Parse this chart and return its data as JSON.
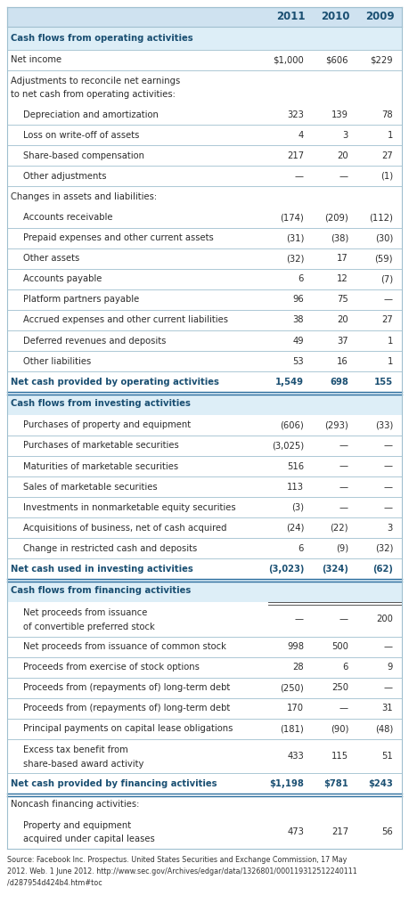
{
  "header_years": [
    "2011",
    "2010",
    "2009"
  ],
  "header_bg": "#cfe2f0",
  "section_bg": "#ddeef7",
  "normal_bg": "#ffffff",
  "alt_bg": "#f0f7fc",
  "border_color": "#9fbfcf",
  "section_text_color": "#1a4f72",
  "text_color": "#2c2c2c",
  "rows": [
    {
      "type": "section",
      "label": "Cash flows from operating activities",
      "v2011": "",
      "v2010": "",
      "v2009": "",
      "multiline": false
    },
    {
      "type": "data",
      "label": "Net income",
      "v2011": "$1,000",
      "v2010": "$606",
      "v2009": "$229",
      "multiline": false,
      "bold": false,
      "indent": 0,
      "top_border": true,
      "bottom_border": true
    },
    {
      "type": "data",
      "label": "Adjustments to reconcile net earnings to net cash from operating activities:",
      "v2011": "",
      "v2010": "",
      "v2009": "",
      "multiline": true,
      "bold": false,
      "indent": 0,
      "top_border": false,
      "bottom_border": false
    },
    {
      "type": "data",
      "label": "Depreciation and amortization",
      "v2011": "323",
      "v2010": "139",
      "v2009": "78",
      "multiline": false,
      "bold": false,
      "indent": 1,
      "top_border": false,
      "bottom_border": true
    },
    {
      "type": "data",
      "label": "Loss on write-off of assets",
      "v2011": "4",
      "v2010": "3",
      "v2009": "1",
      "multiline": false,
      "bold": false,
      "indent": 1,
      "top_border": false,
      "bottom_border": true
    },
    {
      "type": "data",
      "label": "Share-based compensation",
      "v2011": "217",
      "v2010": "20",
      "v2009": "27",
      "multiline": false,
      "bold": false,
      "indent": 1,
      "top_border": false,
      "bottom_border": true
    },
    {
      "type": "data",
      "label": "Other adjustments",
      "v2011": "—",
      "v2010": "—",
      "v2009": "(1)",
      "multiline": false,
      "bold": false,
      "indent": 1,
      "top_border": false,
      "bottom_border": true
    },
    {
      "type": "data",
      "label": "Changes in assets and liabilities:",
      "v2011": "",
      "v2010": "",
      "v2009": "",
      "multiline": false,
      "bold": false,
      "indent": 0,
      "top_border": false,
      "bottom_border": false
    },
    {
      "type": "data",
      "label": "Accounts receivable",
      "v2011": "(174)",
      "v2010": "(209)",
      "v2009": "(112)",
      "multiline": false,
      "bold": false,
      "indent": 1,
      "top_border": false,
      "bottom_border": true
    },
    {
      "type": "data",
      "label": "Prepaid expenses and other current assets",
      "v2011": "(31)",
      "v2010": "(38)",
      "v2009": "(30)",
      "multiline": false,
      "bold": false,
      "indent": 1,
      "top_border": false,
      "bottom_border": true
    },
    {
      "type": "data",
      "label": "Other assets",
      "v2011": "(32)",
      "v2010": "17",
      "v2009": "(59)",
      "multiline": false,
      "bold": false,
      "indent": 1,
      "top_border": false,
      "bottom_border": true
    },
    {
      "type": "data",
      "label": "Accounts payable",
      "v2011": "6",
      "v2010": "12",
      "v2009": "(7)",
      "multiline": false,
      "bold": false,
      "indent": 1,
      "top_border": false,
      "bottom_border": true
    },
    {
      "type": "data",
      "label": "Platform partners payable",
      "v2011": "96",
      "v2010": "75",
      "v2009": "—",
      "multiline": false,
      "bold": false,
      "indent": 1,
      "top_border": false,
      "bottom_border": true
    },
    {
      "type": "data",
      "label": "Accrued expenses and other current liabilities",
      "v2011": "38",
      "v2010": "20",
      "v2009": "27",
      "multiline": false,
      "bold": false,
      "indent": 1,
      "top_border": false,
      "bottom_border": true
    },
    {
      "type": "data",
      "label": "Deferred revenues and deposits",
      "v2011": "49",
      "v2010": "37",
      "v2009": "1",
      "multiline": false,
      "bold": false,
      "indent": 1,
      "top_border": false,
      "bottom_border": true
    },
    {
      "type": "data",
      "label": "Other liabilities",
      "v2011": "53",
      "v2010": "16",
      "v2009": "1",
      "multiline": false,
      "bold": false,
      "indent": 1,
      "top_border": false,
      "bottom_border": true
    },
    {
      "type": "data",
      "label": "Net cash provided by operating activities",
      "v2011": "1,549",
      "v2010": "698",
      "v2009": "155",
      "multiline": false,
      "bold": true,
      "indent": 0,
      "top_border": false,
      "bottom_border": true,
      "double_bottom": true
    },
    {
      "type": "section",
      "label": "Cash flows from investing activities",
      "v2011": "",
      "v2010": "",
      "v2009": "",
      "multiline": false
    },
    {
      "type": "data",
      "label": "Purchases of property and equipment",
      "v2011": "(606)",
      "v2010": "(293)",
      "v2009": "(33)",
      "multiline": false,
      "bold": false,
      "indent": 1,
      "top_border": false,
      "bottom_border": true
    },
    {
      "type": "data",
      "label": "Purchases of marketable securities",
      "v2011": "(3,025)",
      "v2010": "—",
      "v2009": "—",
      "multiline": false,
      "bold": false,
      "indent": 1,
      "top_border": false,
      "bottom_border": true
    },
    {
      "type": "data",
      "label": "Maturities of marketable securities",
      "v2011": "516",
      "v2010": "—",
      "v2009": "—",
      "multiline": false,
      "bold": false,
      "indent": 1,
      "top_border": false,
      "bottom_border": true
    },
    {
      "type": "data",
      "label": "Sales of marketable securities",
      "v2011": "113",
      "v2010": "—",
      "v2009": "—",
      "multiline": false,
      "bold": false,
      "indent": 1,
      "top_border": false,
      "bottom_border": true
    },
    {
      "type": "data",
      "label": "Investments in nonmarketable equity securities",
      "v2011": "(3)",
      "v2010": "—",
      "v2009": "—",
      "multiline": false,
      "bold": false,
      "indent": 1,
      "top_border": false,
      "bottom_border": true
    },
    {
      "type": "data",
      "label": "Acquisitions of business, net of cash acquired",
      "v2011": "(24)",
      "v2010": "(22)",
      "v2009": "3",
      "multiline": false,
      "bold": false,
      "indent": 1,
      "top_border": false,
      "bottom_border": true
    },
    {
      "type": "data",
      "label": "Change in restricted cash and deposits",
      "v2011": "6",
      "v2010": "(9)",
      "v2009": "(32)",
      "multiline": false,
      "bold": false,
      "indent": 1,
      "top_border": false,
      "bottom_border": true
    },
    {
      "type": "data",
      "label": "Net cash used in investing activities",
      "v2011": "(3,023)",
      "v2010": "(324)",
      "v2009": "(62)",
      "multiline": false,
      "bold": true,
      "indent": 0,
      "top_border": false,
      "bottom_border": true,
      "double_bottom": true
    },
    {
      "type": "section",
      "label": "Cash flows from financing activities",
      "v2011": "",
      "v2010": "",
      "v2009": "",
      "multiline": false
    },
    {
      "type": "data",
      "label": "Net proceeds from issuance of convertible preferred stock",
      "v2011": "—",
      "v2010": "—",
      "v2009": "200",
      "multiline": true,
      "bold": false,
      "indent": 1,
      "top_border": false,
      "bottom_border": false,
      "double_top_vals": true
    },
    {
      "type": "data",
      "label": "Net proceeds from issuance of common stock",
      "v2011": "998",
      "v2010": "500",
      "v2009": "—",
      "multiline": false,
      "bold": false,
      "indent": 1,
      "top_border": true,
      "bottom_border": true
    },
    {
      "type": "data",
      "label": "Proceeds from exercise of stock options",
      "v2011": "28",
      "v2010": "6",
      "v2009": "9",
      "multiline": false,
      "bold": false,
      "indent": 1,
      "top_border": false,
      "bottom_border": true
    },
    {
      "type": "data",
      "label": "Proceeds from (repayments of) long-term debt",
      "v2011": "(250)",
      "v2010": "250",
      "v2009": "—",
      "multiline": false,
      "bold": false,
      "indent": 1,
      "top_border": false,
      "bottom_border": true
    },
    {
      "type": "data",
      "label": "Proceeds from (repayments of) long-term debt",
      "v2011": "170",
      "v2010": "—",
      "v2009": "31",
      "multiline": false,
      "bold": false,
      "indent": 1,
      "top_border": false,
      "bottom_border": true
    },
    {
      "type": "data",
      "label": "Principal payments on capital lease obligations",
      "v2011": "(181)",
      "v2010": "(90)",
      "v2009": "(48)",
      "multiline": false,
      "bold": false,
      "indent": 1,
      "top_border": false,
      "bottom_border": true
    },
    {
      "type": "data",
      "label": "Excess tax benefit from share-based award activity",
      "v2011": "433",
      "v2010": "115",
      "v2009": "51",
      "multiline": true,
      "bold": false,
      "indent": 1,
      "top_border": false,
      "bottom_border": true
    },
    {
      "type": "data",
      "label": "Net cash provided by financing activities",
      "v2011": "$1,198",
      "v2010": "$781",
      "v2009": "$243",
      "multiline": false,
      "bold": true,
      "indent": 0,
      "top_border": false,
      "bottom_border": true,
      "double_bottom": true
    },
    {
      "type": "data",
      "label": "Noncash financing activities:",
      "v2011": "",
      "v2010": "",
      "v2009": "",
      "multiline": false,
      "bold": false,
      "indent": 0,
      "top_border": false,
      "bottom_border": false
    },
    {
      "type": "data",
      "label": "Property and equipment acquired under capital leases",
      "v2011": "473",
      "v2010": "217",
      "v2009": "56",
      "multiline": true,
      "bold": false,
      "indent": 1,
      "top_border": false,
      "bottom_border": true
    }
  ],
  "footnote": "Source: Facebook Inc. Prospectus. United States Securities and Exchange Commission, 17 May\n2012. Web. 1 June 2012. http://www.sec.gov/Archives/edgar/data/1326801/000119312512240111\n/d287954d424b4.htm#toc"
}
